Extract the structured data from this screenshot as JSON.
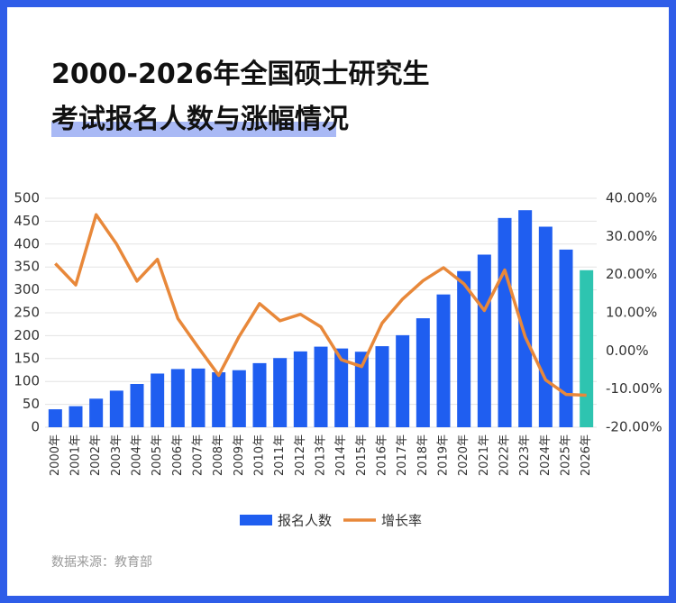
{
  "chart_data": {
    "type": "bar_line",
    "title_lines": [
      "2000-2026年全国硕士研究生",
      "考试报名人数与涨幅情况"
    ],
    "source": "数据来源：教育部",
    "categories": [
      "2000年",
      "2001年",
      "2002年",
      "2003年",
      "2004年",
      "2005年",
      "2006年",
      "2007年",
      "2008年",
      "2009年",
      "2010年",
      "2011年",
      "2012年",
      "2013年",
      "2014年",
      "2015年",
      "2016年",
      "2017年",
      "2018年",
      "2019年",
      "2020年",
      "2021年",
      "2022年",
      "2023年",
      "2024年",
      "2025年",
      "2026年"
    ],
    "series": [
      {
        "name": "报名人数",
        "color": "#1f5ef0",
        "colors": [
          "#1f5ef0",
          "#1f5ef0",
          "#1f5ef0",
          "#1f5ef0",
          "#1f5ef0",
          "#1f5ef0",
          "#1f5ef0",
          "#1f5ef0",
          "#1f5ef0",
          "#1f5ef0",
          "#1f5ef0",
          "#1f5ef0",
          "#1f5ef0",
          "#1f5ef0",
          "#1f5ef0",
          "#1f5ef0",
          "#1f5ef0",
          "#1f5ef0",
          "#1f5ef0",
          "#1f5ef0",
          "#1f5ef0",
          "#1f5ef0",
          "#1f5ef0",
          "#1f5ef0",
          "#1f5ef0",
          "#1f5ef0",
          "#2ec4b0"
        ],
        "values": [
          39.2,
          46,
          62.4,
          79.9,
          94.5,
          117.2,
          127.1,
          128.2,
          120,
          124.6,
          140,
          151.1,
          165.6,
          176,
          172,
          164.9,
          177,
          201,
          238,
          290,
          341,
          377,
          457,
          474,
          438,
          388,
          343
        ]
      },
      {
        "name": "增长率",
        "color": "#e8883a",
        "axis": "y2",
        "values": [
          22.9,
          17.3,
          35.7,
          28,
          18.3,
          24,
          8.5,
          0.9,
          -6.4,
          3.8,
          12.4,
          7.9,
          9.6,
          6.3,
          -2.3,
          -4.1,
          7.3,
          13.6,
          18.4,
          21.8,
          17.6,
          10.6,
          21.2,
          3.7,
          -7.6,
          -11.4,
          -11.6
        ]
      }
    ],
    "ylim": [
      0,
      500
    ],
    "yticks": [
      0,
      50,
      100,
      150,
      200,
      250,
      300,
      350,
      400,
      450,
      500
    ],
    "y2lim": [
      -20,
      40
    ],
    "y2ticks": [
      {
        "value": -20,
        "label": "-20.00%"
      },
      {
        "value": -10,
        "label": "-10.00%"
      },
      {
        "value": 0,
        "label": "0.00%"
      },
      {
        "value": 10,
        "label": "10.00%"
      },
      {
        "value": 20,
        "label": "20.00%"
      },
      {
        "value": 30,
        "label": "30.00%"
      },
      {
        "value": 40,
        "label": "40.00%"
      }
    ],
    "grid": true
  }
}
